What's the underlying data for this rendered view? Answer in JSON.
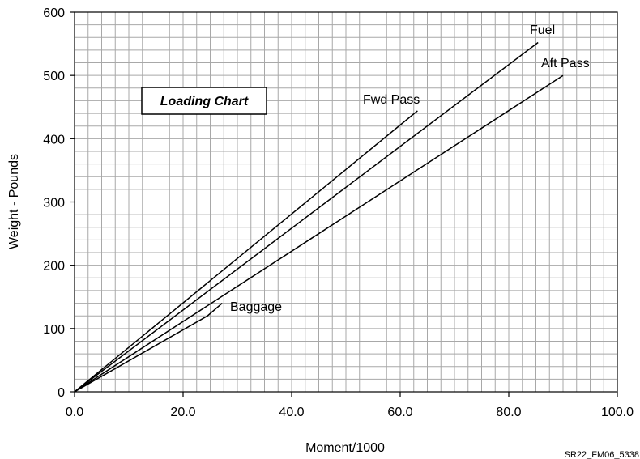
{
  "chart_data": {
    "type": "line",
    "title": "Loading Chart",
    "xlabel": "Moment/1000",
    "ylabel": "Weight - Pounds",
    "xlim": [
      0,
      100
    ],
    "ylim": [
      0,
      600
    ],
    "x_ticks": [
      "0.0",
      "20.0",
      "40.0",
      "60.0",
      "80.0",
      "100.0"
    ],
    "y_ticks": [
      "0",
      "100",
      "200",
      "300",
      "400",
      "500",
      "600"
    ],
    "grid": true,
    "minor_grid_x": 2.5,
    "minor_grid_y": 20,
    "series": [
      {
        "name": "Fwd Pass",
        "points": [
          [
            0,
            0
          ],
          [
            63.2,
            444
          ]
        ]
      },
      {
        "name": "Fuel",
        "points": [
          [
            0,
            0
          ],
          [
            85.4,
            552
          ]
        ]
      },
      {
        "name": "Aft Pass",
        "points": [
          [
            0,
            0
          ],
          [
            90,
            500
          ]
        ]
      },
      {
        "name": "Baggage",
        "points": [
          [
            0,
            0
          ],
          [
            24.5,
            120
          ],
          [
            27.2,
            140
          ]
        ]
      }
    ]
  },
  "figure_code": "SR22_FM06_5338"
}
